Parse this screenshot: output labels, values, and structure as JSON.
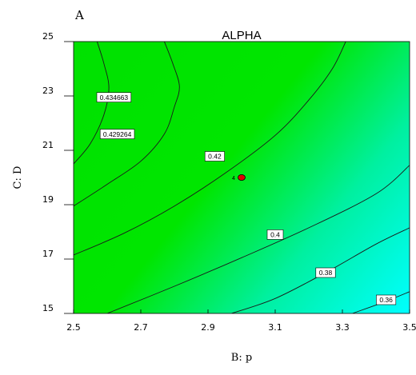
{
  "chart_data": {
    "type": "contour",
    "panel_label": "A",
    "title": "ALPHA",
    "xlabel": "B: p",
    "ylabel": "C: D",
    "xlim": [
      2.5,
      3.5
    ],
    "ylim": [
      15,
      25
    ],
    "x_ticks": [
      "2.5",
      "2.7",
      "2.9",
      "3.1",
      "3.3",
      "3.5"
    ],
    "y_ticks": [
      "15",
      "17",
      "19",
      "21",
      "23",
      "25"
    ],
    "fill": {
      "high_color": "#00e100",
      "low_color": "#00ffff",
      "corner_low": [
        3.5,
        15
      ]
    },
    "contours": [
      {
        "label": "0.434663",
        "label_at": [
          2.62,
          22.95
        ],
        "points": [
          [
            2.5,
            20.5
          ],
          [
            2.55,
            21.25
          ],
          [
            2.59,
            22.3
          ],
          [
            2.605,
            23.3
          ],
          [
            2.59,
            24.2
          ],
          [
            2.57,
            25
          ]
        ]
      },
      {
        "label": "0.429264",
        "label_at": [
          2.63,
          21.6
        ],
        "points": [
          [
            2.5,
            18.95
          ],
          [
            2.6,
            19.75
          ],
          [
            2.7,
            20.6
          ],
          [
            2.77,
            21.6
          ],
          [
            2.8,
            22.6
          ],
          [
            2.815,
            23.35
          ],
          [
            2.795,
            24.2
          ],
          [
            2.77,
            25
          ]
        ]
      },
      {
        "label": "0.42",
        "label_at": [
          2.92,
          20.78
        ],
        "points": [
          [
            2.5,
            17.15
          ],
          [
            2.65,
            17.95
          ],
          [
            2.8,
            18.95
          ],
          [
            2.95,
            20.15
          ],
          [
            3.1,
            21.55
          ],
          [
            3.2,
            22.85
          ],
          [
            3.27,
            24
          ],
          [
            3.31,
            25
          ]
        ]
      },
      {
        "label": "0.4",
        "label_at": [
          3.1,
          17.9
        ],
        "points": [
          [
            2.6,
            15
          ],
          [
            2.8,
            16.0
          ],
          [
            3.0,
            17.05
          ],
          [
            3.2,
            18.15
          ],
          [
            3.4,
            19.4
          ],
          [
            3.5,
            20.45
          ]
        ]
      },
      {
        "label": "0.38",
        "label_at": [
          3.25,
          16.5
        ],
        "points": [
          [
            2.97,
            15
          ],
          [
            3.1,
            15.55
          ],
          [
            3.25,
            16.5
          ],
          [
            3.4,
            17.55
          ],
          [
            3.5,
            18.15
          ]
        ]
      },
      {
        "label": "0.36",
        "label_at": [
          3.43,
          15.5
        ],
        "points": [
          [
            3.33,
            15
          ],
          [
            3.42,
            15.4
          ],
          [
            3.5,
            15.8
          ]
        ]
      }
    ],
    "design_point": {
      "x": 3.0,
      "y": 20.0,
      "label": "4",
      "color": "#e00000"
    }
  }
}
